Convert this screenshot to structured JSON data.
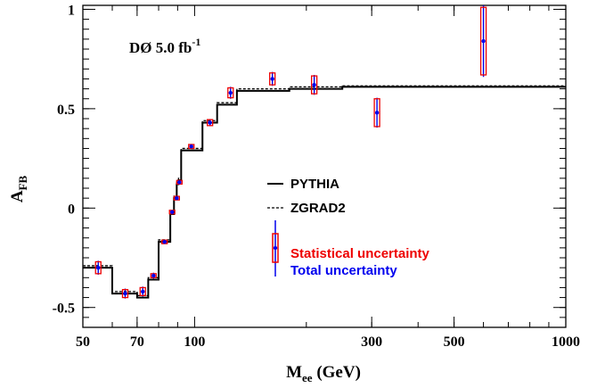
{
  "chart_data": {
    "type": "scatter",
    "xscale": "log",
    "xlim": [
      50,
      1000
    ],
    "ylim": [
      -0.6,
      1.02
    ],
    "xticks": [
      50,
      70,
      100,
      300,
      500,
      1000
    ],
    "xtick_labels": [
      "50",
      "70",
      "100",
      "300",
      "500",
      "1000"
    ],
    "yticks": [
      -0.5,
      0,
      0.5,
      1
    ],
    "ytick_labels": [
      "-0.5",
      "0",
      "0.5",
      "1"
    ],
    "xlabel": {
      "main": "M",
      "sub": "ee",
      "rest": " (GeV)"
    },
    "ylabel": {
      "main": "A",
      "sub": "FB"
    },
    "annotation": {
      "main": "DØ 5.0 fb",
      "sup": "-1"
    },
    "legend": {
      "entries": [
        {
          "label": "PYTHIA",
          "style": "solid"
        },
        {
          "label": "ZGRAD2",
          "style": "dashed"
        },
        {
          "label": "Statistical uncertainty",
          "color": "#ee0000"
        },
        {
          "label": "Total uncertainty",
          "color": "#0000ee"
        }
      ]
    },
    "colors": {
      "statistical": "#ee0000",
      "total": "#0000ee",
      "curves": "#000000"
    },
    "data_points": [
      {
        "x": 55,
        "y": -0.3,
        "stat": 0.03,
        "tot": 0.035
      },
      {
        "x": 65,
        "y": -0.43,
        "stat": 0.02,
        "tot": 0.025
      },
      {
        "x": 72.5,
        "y": -0.42,
        "stat": 0.02,
        "tot": 0.025
      },
      {
        "x": 77.5,
        "y": -0.34,
        "stat": 0.01,
        "tot": 0.015
      },
      {
        "x": 83,
        "y": -0.17,
        "stat": 0.008,
        "tot": 0.01
      },
      {
        "x": 87,
        "y": -0.02,
        "stat": 0.005,
        "tot": 0.007
      },
      {
        "x": 89.5,
        "y": 0.05,
        "stat": 0.004,
        "tot": 0.006
      },
      {
        "x": 91,
        "y": 0.13,
        "stat": 0.003,
        "tot": 0.005
      },
      {
        "x": 98,
        "y": 0.31,
        "stat": 0.01,
        "tot": 0.012
      },
      {
        "x": 110,
        "y": 0.43,
        "stat": 0.015,
        "tot": 0.018
      },
      {
        "x": 125,
        "y": 0.58,
        "stat": 0.025,
        "tot": 0.03
      },
      {
        "x": 162,
        "y": 0.65,
        "stat": 0.03,
        "tot": 0.035
      },
      {
        "x": 210,
        "y": 0.62,
        "stat": 0.045,
        "tot": 0.05
      },
      {
        "x": 310,
        "y": 0.48,
        "stat": 0.07,
        "tot": 0.075
      },
      {
        "x": 600,
        "y": 0.84,
        "stat": 0.17,
        "tot": 0.18
      }
    ],
    "pythia": {
      "edges": [
        50,
        60,
        70,
        75,
        80,
        86,
        88,
        89.5,
        90.5,
        92,
        105,
        115,
        130,
        180,
        250,
        1000
      ],
      "values": [
        -0.3,
        -0.43,
        -0.45,
        -0.36,
        -0.17,
        -0.03,
        0.05,
        0.12,
        0.14,
        0.29,
        0.43,
        0.52,
        0.59,
        0.6,
        0.61
      ]
    },
    "zgrad2": {
      "edges": [
        50,
        60,
        70,
        75,
        80,
        86,
        88,
        89.5,
        90.5,
        92,
        105,
        115,
        130,
        180,
        250,
        1000
      ],
      "values": [
        -0.29,
        -0.42,
        -0.44,
        -0.35,
        -0.16,
        -0.02,
        0.06,
        0.13,
        0.15,
        0.3,
        0.44,
        0.53,
        0.6,
        0.61,
        0.615
      ]
    }
  }
}
